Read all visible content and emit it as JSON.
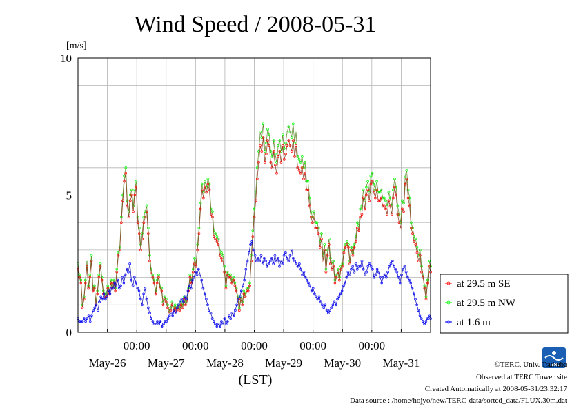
{
  "chart_data": {
    "type": "line",
    "title": "Wind Speed / 2008-05-31",
    "ylabel": "[m/s]",
    "xlabel": "(LST)",
    "ylim": [
      0,
      10
    ],
    "yticks": [
      0,
      5,
      10
    ],
    "xlim_hours": [
      0,
      144
    ],
    "day_labels": [
      "May-26",
      "May-27",
      "May-28",
      "May-29",
      "May-30",
      "May-31"
    ],
    "midnight_label": "00:00",
    "grid": true,
    "legend_position": "right",
    "x_unit": "hours after 2008-05-25 12:00 LST",
    "series": [
      {
        "name": "at 29.5 m SE",
        "color": "#ff0000",
        "values": [
          2.3,
          2.0,
          1.8,
          0.9,
          1.2,
          1.8,
          2.4,
          1.6,
          2.0,
          2.6,
          1.5,
          1.6,
          1.0,
          1.4,
          2.0,
          2.4,
          1.9,
          1.4,
          1.3,
          1.3,
          1.6,
          1.4,
          1.8,
          1.6,
          1.8,
          1.5,
          2.2,
          2.8,
          3.0,
          4.0,
          4.8,
          5.5,
          5.8,
          4.6,
          4.2,
          4.8,
          5.0,
          4.4,
          5.0,
          5.3,
          4.0,
          3.6,
          3.0,
          3.4,
          4.0,
          4.2,
          4.4,
          3.6,
          2.6,
          2.2,
          2.0,
          1.8,
          1.4,
          1.8,
          2.0,
          1.6,
          1.5,
          1.0,
          1.2,
          1.1,
          0.9,
          0.7,
          0.8,
          1.0,
          0.8,
          0.9,
          0.8,
          0.9,
          0.8,
          1.0,
          0.9,
          1.2,
          1.0,
          1.1,
          1.5,
          2.0,
          1.8,
          2.2,
          2.5,
          2.4,
          3.0,
          3.6,
          4.5,
          5.2,
          4.9,
          5.3,
          5.1,
          5.4,
          5.2,
          4.3,
          4.2,
          3.5,
          3.4,
          3.3,
          3.2,
          2.8,
          2.7,
          2.6,
          2.2,
          1.6,
          2.1,
          2.0,
          2.0,
          1.8,
          1.9,
          1.7,
          1.5,
          1.2,
          0.8,
          1.2,
          1.0,
          1.4,
          1.3,
          1.5,
          1.5,
          1.7,
          2.6,
          3.5,
          4.2,
          4.8,
          5.6,
          6.2,
          6.8,
          6.6,
          7.1,
          6.2,
          6.5,
          7.0,
          6.8,
          6.2,
          6.0,
          6.6,
          6.1,
          5.8,
          6.4,
          6.6,
          6.2,
          6.8,
          6.3,
          6.5,
          6.8,
          7.0,
          6.8,
          6.6,
          7.0,
          6.4,
          6.8,
          6.0,
          5.9,
          5.8,
          6.0,
          5.6,
          5.8,
          5.2,
          5.2,
          4.6,
          4.2,
          4.0,
          4.2,
          3.8,
          3.8,
          3.6,
          3.1,
          3.4,
          2.6,
          3.0,
          2.2,
          2.8,
          3.2,
          2.5,
          2.3,
          2.4,
          1.8,
          2.0,
          2.2,
          1.9,
          2.3,
          2.4,
          2.9,
          3.1,
          3.2,
          3.1,
          2.5,
          3.0,
          2.8,
          3.1,
          3.3,
          3.8,
          3.7,
          4.2,
          4.3,
          4.9,
          4.5,
          5.0,
          5.2,
          4.8,
          5.4,
          5.5,
          5.1,
          4.9,
          5.2,
          4.8,
          4.8,
          4.9,
          4.6,
          4.6,
          4.5,
          4.3,
          4.8,
          4.6,
          4.3,
          4.9,
          5.3,
          5.0,
          4.3,
          4.0,
          3.8,
          4.5,
          4.4,
          5.4,
          5.6,
          4.9,
          4.6,
          3.8,
          3.6,
          3.3,
          3.2,
          2.9,
          2.6,
          2.8,
          2.2,
          2.0,
          1.6,
          1.2,
          1.8,
          2.4,
          2.2
        ]
      },
      {
        "name": "at 29.5 m NW",
        "color": "#00ff00",
        "values": [
          2.5,
          2.1,
          1.9,
          1.0,
          1.3,
          1.9,
          2.6,
          1.7,
          2.1,
          2.8,
          1.6,
          1.7,
          1.1,
          1.5,
          2.1,
          2.5,
          2.0,
          1.5,
          1.4,
          1.4,
          1.7,
          1.5,
          1.9,
          1.7,
          1.9,
          1.6,
          2.3,
          2.9,
          3.1,
          4.2,
          5.0,
          5.7,
          6.0,
          4.8,
          4.4,
          5.0,
          5.2,
          4.6,
          5.2,
          5.5,
          4.2,
          3.8,
          3.2,
          3.6,
          4.2,
          4.4,
          4.6,
          3.8,
          2.8,
          2.3,
          2.1,
          1.9,
          1.5,
          1.9,
          2.1,
          1.7,
          1.6,
          1.1,
          1.3,
          1.2,
          1.0,
          0.8,
          0.9,
          1.1,
          0.9,
          1.0,
          0.9,
          1.0,
          0.9,
          1.1,
          1.0,
          1.3,
          1.1,
          1.2,
          1.6,
          2.1,
          1.9,
          2.3,
          2.7,
          2.5,
          3.2,
          3.8,
          4.7,
          5.4,
          5.1,
          5.5,
          5.3,
          5.6,
          5.4,
          4.5,
          4.4,
          3.7,
          3.6,
          3.5,
          3.4,
          3.0,
          2.9,
          2.8,
          2.4,
          1.7,
          2.2,
          2.1,
          2.1,
          1.9,
          2.0,
          1.8,
          1.6,
          1.3,
          0.9,
          1.3,
          1.1,
          1.5,
          1.4,
          1.6,
          1.6,
          1.8,
          2.8,
          3.7,
          4.5,
          5.1,
          6.0,
          6.6,
          7.3,
          7.1,
          7.6,
          6.6,
          6.9,
          7.4,
          7.2,
          6.6,
          6.4,
          7.0,
          6.5,
          6.2,
          6.8,
          7.0,
          6.6,
          7.2,
          6.7,
          6.9,
          7.3,
          7.5,
          7.3,
          7.1,
          7.6,
          6.9,
          7.3,
          6.4,
          6.3,
          6.2,
          6.4,
          6.0,
          6.2,
          5.5,
          5.5,
          4.9,
          4.4,
          4.2,
          4.4,
          4.0,
          4.0,
          3.8,
          3.3,
          3.6,
          2.8,
          3.2,
          2.3,
          3.0,
          3.4,
          2.7,
          2.5,
          2.6,
          1.9,
          2.1,
          2.3,
          2.0,
          2.4,
          2.5,
          3.0,
          3.2,
          3.3,
          3.2,
          2.6,
          3.1,
          2.9,
          3.2,
          3.5,
          4.0,
          3.9,
          4.5,
          4.6,
          5.2,
          4.8,
          5.3,
          5.5,
          5.1,
          5.7,
          5.8,
          5.4,
          5.2,
          5.5,
          5.1,
          5.1,
          5.2,
          4.9,
          4.9,
          4.8,
          4.6,
          5.1,
          4.9,
          4.6,
          5.2,
          5.6,
          5.3,
          4.6,
          4.3,
          4.0,
          4.8,
          4.7,
          5.7,
          5.9,
          5.2,
          4.9,
          4.0,
          3.8,
          3.5,
          3.4,
          3.1,
          2.8,
          3.0,
          2.4,
          2.1,
          1.7,
          1.3,
          1.9,
          2.6,
          2.4
        ]
      },
      {
        "name": "at 1.6 m",
        "color": "#0000ff",
        "values": [
          0.5,
          0.4,
          0.4,
          0.4,
          0.5,
          0.4,
          0.5,
          0.6,
          0.4,
          0.6,
          0.8,
          0.9,
          1.0,
          0.8,
          1.1,
          1.3,
          1.2,
          1.4,
          1.2,
          1.3,
          1.5,
          1.4,
          1.6,
          1.6,
          1.8,
          1.7,
          1.9,
          1.6,
          1.7,
          2.0,
          1.8,
          2.1,
          2.3,
          2.2,
          2.5,
          1.9,
          1.7,
          2.0,
          1.8,
          1.6,
          1.5,
          1.2,
          1.0,
          1.4,
          1.6,
          1.2,
          0.9,
          0.7,
          0.5,
          0.4,
          0.3,
          0.3,
          0.4,
          0.3,
          0.4,
          0.2,
          0.3,
          0.4,
          0.4,
          0.5,
          0.6,
          0.7,
          0.6,
          0.8,
          0.7,
          0.9,
          1.0,
          1.1,
          1.2,
          1.1,
          1.3,
          1.2,
          1.5,
          1.7,
          1.6,
          1.9,
          2.0,
          2.2,
          2.1,
          2.3,
          2.1,
          1.9,
          1.6,
          1.4,
          1.2,
          1.0,
          0.8,
          0.7,
          0.5,
          0.4,
          0.3,
          0.2,
          0.3,
          0.2,
          0.4,
          0.3,
          0.5,
          0.3,
          0.4,
          0.6,
          0.5,
          0.7,
          0.6,
          0.8,
          1.0,
          1.2,
          1.3,
          1.5,
          1.7,
          1.9,
          2.3,
          2.6,
          2.9,
          3.2,
          3.3,
          3.0,
          2.8,
          2.6,
          2.7,
          2.6,
          2.8,
          2.5,
          2.7,
          2.6,
          2.4,
          2.5,
          2.6,
          2.7,
          2.5,
          2.8,
          2.6,
          2.7,
          2.4,
          2.6,
          2.5,
          2.8,
          2.9,
          2.7,
          2.6,
          2.8,
          3.0,
          2.7,
          2.6,
          2.5,
          2.4,
          2.5,
          2.3,
          2.1,
          2.2,
          2.0,
          1.9,
          1.8,
          1.7,
          1.5,
          1.6,
          1.4,
          1.3,
          1.2,
          1.3,
          1.1,
          1.0,
          0.9,
          1.0,
          0.8,
          0.7,
          0.8,
          0.9,
          1.0,
          1.1,
          1.0,
          1.2,
          1.3,
          1.4,
          1.5,
          1.7,
          1.8,
          2.0,
          2.2,
          2.1,
          2.3,
          2.4,
          2.2,
          2.5,
          2.3,
          2.4,
          2.4,
          2.6,
          2.3,
          2.1,
          2.2,
          2.4,
          2.5,
          2.4,
          2.3,
          2.0,
          2.1,
          2.3,
          2.2,
          2.0,
          1.8,
          2.0,
          2.1,
          2.0,
          2.2,
          2.4,
          2.5,
          2.6,
          2.4,
          2.3,
          2.2,
          2.0,
          1.8,
          2.1,
          2.3,
          2.4,
          2.2,
          2.0,
          1.9,
          1.8,
          1.6,
          1.4,
          1.2,
          1.0,
          0.8,
          0.6,
          0.5,
          0.4,
          0.3,
          0.4,
          0.5,
          0.6,
          0.5
        ]
      }
    ]
  },
  "credits": {
    "copyright": "©TERC, Univ. Tsukuba",
    "observed": "Observed at TERC Tower site",
    "created": "Created Automatically at 2008-05-31/23:32:17",
    "source": "Data source : /home/hojyo/new/TERC-data/sorted_data/FLUX.30m.dat",
    "logo_text": "TERC"
  }
}
